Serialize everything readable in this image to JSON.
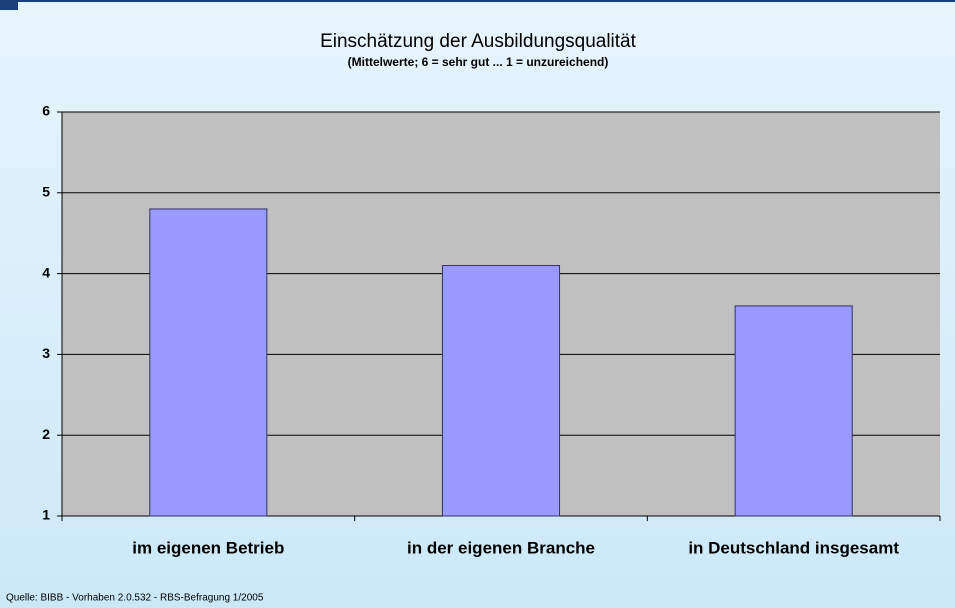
{
  "chart_data": {
    "type": "bar",
    "title": "Einschätzung der Ausbildungsqualität",
    "subtitle": "(Mittelwerte; 6 = sehr gut ... 1 = unzureichend)",
    "categories": [
      "im eigenen Betrieb",
      "in der eigenen Branche",
      "in Deutschland insgesamt"
    ],
    "values": [
      4.8,
      4.1,
      3.6
    ],
    "color": "#9999ff",
    "ylim": [
      1,
      6
    ],
    "yticks": [
      1,
      2,
      3,
      4,
      5,
      6
    ],
    "grid": true,
    "source": "Quelle: BIBB - Vorhaben 2.0.532 - RBS-Befragung 1/2005"
  }
}
